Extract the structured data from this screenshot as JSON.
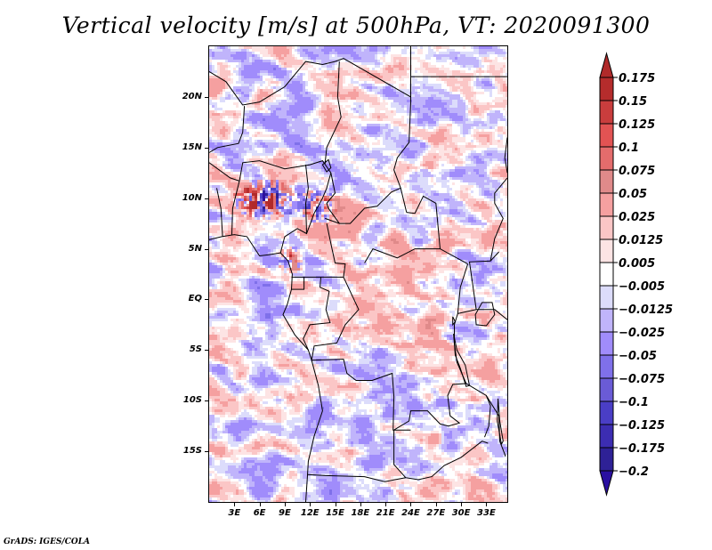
{
  "chart_data": {
    "type": "heatmap",
    "title": "Vertical velocity [m/s] at 500hPa, VT: 2020091300",
    "variable": "Vertical velocity",
    "units": "m/s",
    "level": "500hPa",
    "valid_time": "2020091300",
    "xlabel": "",
    "ylabel": "",
    "x_range_deg_east": [
      0,
      35.5
    ],
    "y_range_deg_north": [
      -20,
      25
    ],
    "x_ticks": [
      "3E",
      "6E",
      "9E",
      "12E",
      "15E",
      "18E",
      "21E",
      "24E",
      "27E",
      "30E",
      "33E"
    ],
    "x_tick_values": [
      3,
      6,
      9,
      12,
      15,
      18,
      21,
      24,
      27,
      30,
      33
    ],
    "y_ticks": [
      "20N",
      "15N",
      "10N",
      "5N",
      "EQ",
      "5S",
      "10S",
      "15S"
    ],
    "y_tick_values": [
      20,
      15,
      10,
      5,
      0,
      -5,
      -10,
      -15
    ],
    "colorbar": {
      "levels": [
        0.175,
        0.15,
        0.125,
        0.1,
        0.075,
        0.05,
        0.025,
        0.0125,
        0.005,
        -0.005,
        -0.0125,
        -0.025,
        -0.05,
        -0.075,
        -0.1,
        -0.125,
        -0.175,
        -0.2
      ],
      "labels": [
        "0.175",
        "0.15",
        "0.125",
        "0.1",
        "0.075",
        "0.05",
        "0.025",
        "0.0125",
        "0.005",
        "−0.005",
        "−0.0125",
        "−0.025",
        "−0.05",
        "−0.075",
        "−0.1",
        "−0.125",
        "−0.175",
        "−0.2"
      ],
      "colors_top_to_bottom": [
        "#b02a2a",
        "#b52c2c",
        "#c93d3d",
        "#e25353",
        "#e46c6c",
        "#e08a8a",
        "#f5a0a0",
        "#fbc6c6",
        "#fde4e4",
        "#ffffff",
        "#dcdcfb",
        "#c0b4fb",
        "#a08cfb",
        "#7f70ea",
        "#6a5bd6",
        "#4a3ec6",
        "#3c2db2",
        "#2e2196",
        "#2a0fa0"
      ],
      "extend": "both",
      "orientation": "vertical",
      "placement": "right"
    },
    "grid": false,
    "features": "country borders and coastlines (Central Africa domain)",
    "notable_regions": [
      {
        "description": "strong upward/downward couplets (dark red & blue) over northern Nigeria / Cameroon highlands",
        "lat_approx": 10,
        "lon_approx": 7
      },
      {
        "description": "widespread positive (red) values over Congo basin and CAR",
        "lat_approx": 0,
        "lon_approx": 22
      },
      {
        "description": "weak negative (blue) values over Angola and Gulf of Guinea ocean",
        "lat_approx": -10,
        "lon_approx": 15
      }
    ]
  },
  "footer": {
    "credit": "GrADS: IGES/COLA"
  }
}
